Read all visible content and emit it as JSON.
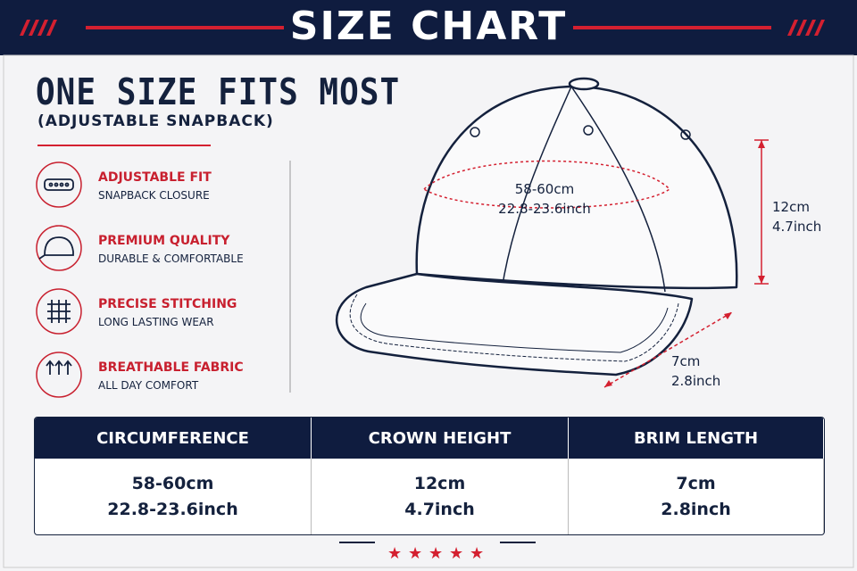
{
  "header": {
    "title": "SIZE CHART"
  },
  "intro": {
    "title": "ONE SIZE FITS MOST",
    "subtitle": "(ADJUSTABLE SNAPBACK)"
  },
  "features": [
    {
      "title": "ADJUSTABLE FIT",
      "text": "SNAPBACK CLOSURE"
    },
    {
      "title": "PREMIUM QUALITY",
      "text": "DURABLE & COMFORTABLE"
    },
    {
      "title": "PRECISE STITCHING",
      "text": "LONG LASTING WEAR"
    },
    {
      "title": "BREATHABLE FABRIC",
      "text": "ALL DAY COMFORT"
    }
  ],
  "diagram": {
    "circumference": [
      "58-60cm",
      "22.8-23.6inch"
    ],
    "crown_height": [
      "12cm",
      "4.7inch"
    ],
    "brim_length": [
      "7cm",
      "2.8inch"
    ]
  },
  "table": {
    "headers": [
      "CIRCUMFERENCE",
      "CROWN HEIGHT",
      "BRIM LENGTH"
    ],
    "rows": [
      [
        [
          "58-60cm",
          "22.8-23.6inch"
        ],
        [
          "12cm",
          "4.7inch"
        ],
        [
          "7cm",
          "2.8inch"
        ]
      ]
    ]
  }
}
